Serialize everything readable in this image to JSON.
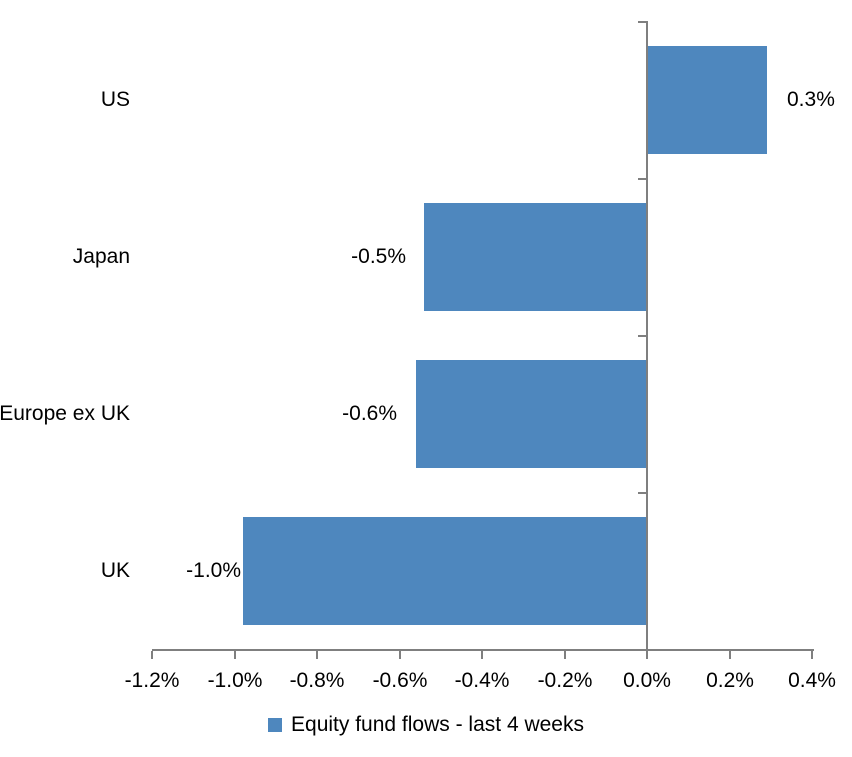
{
  "chart_data": {
    "type": "bar",
    "orientation": "horizontal",
    "title": "",
    "categories": [
      "US",
      "Japan",
      "Europe ex UK",
      "UK"
    ],
    "values": [
      0.3,
      -0.5,
      -0.6,
      -1.0
    ],
    "data_labels": [
      "0.3%",
      "-0.5%",
      "-0.6%",
      "-1.0%"
    ],
    "plotted_values_est": [
      0.29,
      -0.54,
      -0.56,
      -0.98
    ],
    "unit": "%",
    "x_axis": {
      "min": -1.2,
      "max": 0.4,
      "tick_step": 0.2,
      "tick_labels": [
        "-1.2%",
        "-1.0%",
        "-0.8%",
        "-0.6%",
        "-0.4%",
        "-0.2%",
        "0.0%",
        "0.2%",
        "0.4%"
      ]
    },
    "y_axis": {
      "tick_count": 5
    },
    "legend": {
      "label": "Equity fund flows - last 4 weeks",
      "position": "bottom"
    },
    "colors": {
      "bar": "#4e87be",
      "axis": "#7f7f7f",
      "text": "#000000",
      "background": "#ffffff"
    },
    "grid": false
  }
}
